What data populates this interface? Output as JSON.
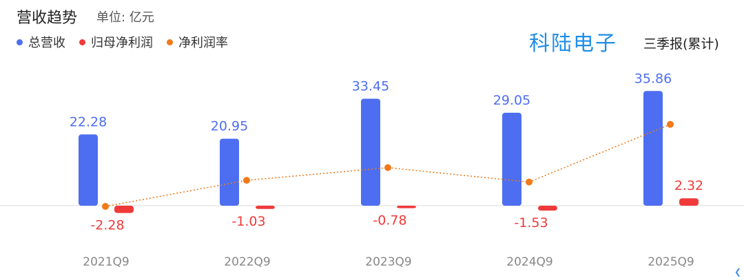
{
  "header": {
    "title": "营收趋势",
    "unit": "单位: 亿元",
    "company": "科陆电子",
    "report_type": "三季报(累计)"
  },
  "legend": [
    {
      "label": "总营收",
      "color": "#4d6ef0"
    },
    {
      "label": "归母净利润",
      "color": "#f03a3a"
    },
    {
      "label": "净利润率",
      "color": "#f07a1a"
    }
  ],
  "chart_data": {
    "type": "bar",
    "categories": [
      "2021Q9",
      "2022Q9",
      "2023Q9",
      "2024Q9",
      "2025Q9"
    ],
    "series": [
      {
        "name": "总营收",
        "values": [
          22.28,
          20.95,
          33.45,
          29.05,
          35.86
        ],
        "color": "#4d6ef0",
        "label_color": "#4d6ef0"
      },
      {
        "name": "归母净利润",
        "values": [
          -2.28,
          -1.03,
          -0.78,
          -1.53,
          2.32
        ],
        "color": "#f03a3a",
        "label_color": "#f03a3a"
      },
      {
        "name": "净利润率",
        "type": "line",
        "values": [
          -10.23,
          -4.92,
          -2.33,
          -5.27,
          6.47
        ],
        "color": "#f07a1a"
      }
    ],
    "xlabel": "",
    "ylabel": ""
  },
  "icons": {
    "back": "chevron-left-icon"
  }
}
